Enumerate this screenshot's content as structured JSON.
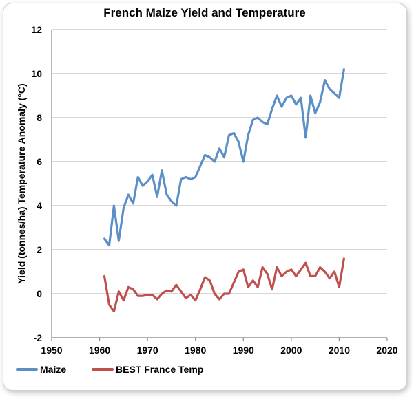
{
  "chart_data": {
    "type": "line",
    "title": "French Maize Yield and Temperature",
    "ylabel": "Yield (tonnes/ha) Temperature Anomaly (°C)",
    "xlabel": "",
    "xlim": [
      1950,
      2020
    ],
    "ylim": [
      -2,
      12
    ],
    "x_ticks": [
      "1950",
      "1960",
      "1970",
      "1980",
      "1990",
      "2000",
      "2010",
      "2020"
    ],
    "y_ticks": [
      "-2",
      "0",
      "2",
      "4",
      "6",
      "8",
      "10",
      "12"
    ],
    "grid": "horizontal",
    "legend_position": "bottom",
    "series": [
      {
        "name": "Maize",
        "color": "#5b8fc7",
        "x": [
          1961,
          1962,
          1963,
          1964,
          1965,
          1966,
          1967,
          1968,
          1969,
          1970,
          1971,
          1972,
          1973,
          1974,
          1975,
          1976,
          1977,
          1978,
          1979,
          1980,
          1981,
          1982,
          1983,
          1984,
          1985,
          1986,
          1987,
          1988,
          1989,
          1990,
          1991,
          1992,
          1993,
          1994,
          1995,
          1996,
          1997,
          1998,
          1999,
          2000,
          2001,
          2002,
          2003,
          2004,
          2005,
          2006,
          2007,
          2008,
          2009,
          2010,
          2011
        ],
        "y": [
          2.5,
          2.2,
          4.0,
          2.4,
          3.9,
          4.5,
          4.1,
          5.3,
          4.9,
          5.1,
          5.4,
          4.4,
          5.6,
          4.5,
          4.2,
          4.0,
          5.2,
          5.3,
          5.2,
          5.3,
          5.8,
          6.3,
          6.2,
          6.0,
          6.6,
          6.2,
          7.2,
          7.3,
          6.9,
          6.0,
          7.2,
          7.9,
          8.0,
          7.8,
          7.7,
          8.4,
          9.0,
          8.5,
          8.9,
          9.0,
          8.6,
          8.9,
          7.1,
          9.0,
          8.2,
          8.7,
          9.7,
          9.3,
          9.1,
          8.9,
          10.2
        ]
      },
      {
        "name": "BEST France Temp",
        "color": "#c0504d",
        "x": [
          1961,
          1962,
          1963,
          1964,
          1965,
          1966,
          1967,
          1968,
          1969,
          1970,
          1971,
          1972,
          1973,
          1974,
          1975,
          1976,
          1977,
          1978,
          1979,
          1980,
          1981,
          1982,
          1983,
          1984,
          1985,
          1986,
          1987,
          1988,
          1989,
          1990,
          1991,
          1992,
          1993,
          1994,
          1995,
          1996,
          1997,
          1998,
          1999,
          2000,
          2001,
          2002,
          2003,
          2004,
          2005,
          2006,
          2007,
          2008,
          2009,
          2010,
          2011
        ],
        "y": [
          0.8,
          -0.5,
          -0.8,
          0.1,
          -0.3,
          0.3,
          0.2,
          -0.1,
          -0.1,
          -0.05,
          -0.05,
          -0.25,
          0.0,
          0.15,
          0.1,
          0.4,
          0.1,
          -0.2,
          -0.05,
          -0.3,
          0.2,
          0.75,
          0.6,
          0.0,
          -0.25,
          0.0,
          0.0,
          0.5,
          1.0,
          1.1,
          0.3,
          0.6,
          0.3,
          1.2,
          0.9,
          0.2,
          1.2,
          0.8,
          1.0,
          1.1,
          0.8,
          1.1,
          1.4,
          0.8,
          0.8,
          1.2,
          1.0,
          0.7,
          1.0,
          0.3,
          1.6
        ]
      }
    ]
  }
}
